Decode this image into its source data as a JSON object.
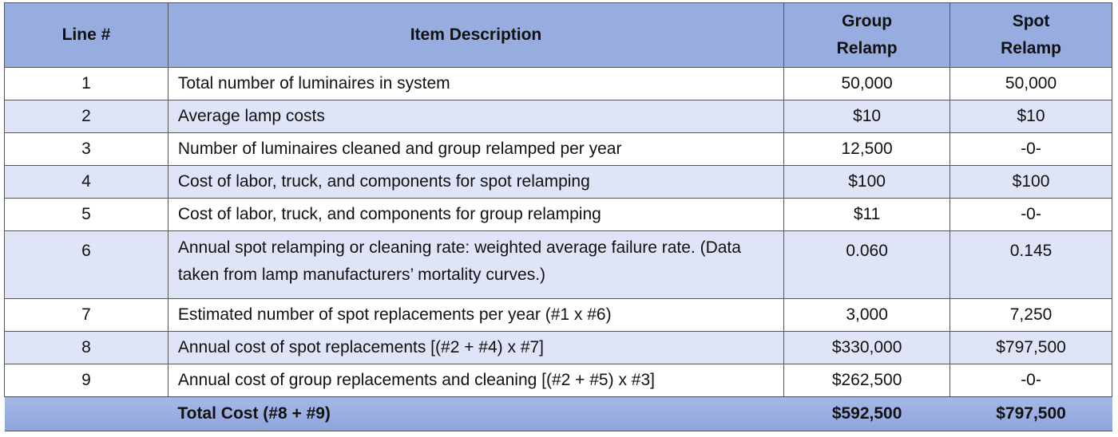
{
  "table": {
    "header": [
      "Line #",
      "Item Description",
      "Group Relamp",
      "Spot Relamp"
    ],
    "rows": [
      [
        "1",
        "Total number of luminaires in system",
        "50,000",
        "50,000"
      ],
      [
        "2",
        "Average lamp costs",
        "$10",
        "$10"
      ],
      [
        "3",
        "Number of luminaires cleaned and group relamped per year",
        "12,500",
        "-0-"
      ],
      [
        "4",
        "Cost of labor, truck, and components for spot relamping",
        "$100",
        "$100"
      ],
      [
        "5",
        "Cost of labor, truck, and components for group relamping",
        "$11",
        "-0-"
      ],
      [
        "6",
        "Annual spot relamping or cleaning rate: weighted average failure rate. (Data taken from lamp manufacturers’ mortality curves.)",
        "0.060",
        "0.145"
      ],
      [
        "7",
        "Estimated number of spot replacements per year (#1 x #6)",
        "3,000",
        "7,250"
      ],
      [
        "8",
        "Annual cost of spot replacements [(#2 + #4) x #7]",
        "$330,000",
        "$797,500"
      ],
      [
        "9",
        "Annual cost of group replacements and cleaning [(#2 + #5) x #3]",
        "$262,500",
        "-0-"
      ]
    ],
    "total": {
      "label": "Total Cost (#8 + #9)",
      "group": "$592,500",
      "spot": "$797,500"
    }
  }
}
